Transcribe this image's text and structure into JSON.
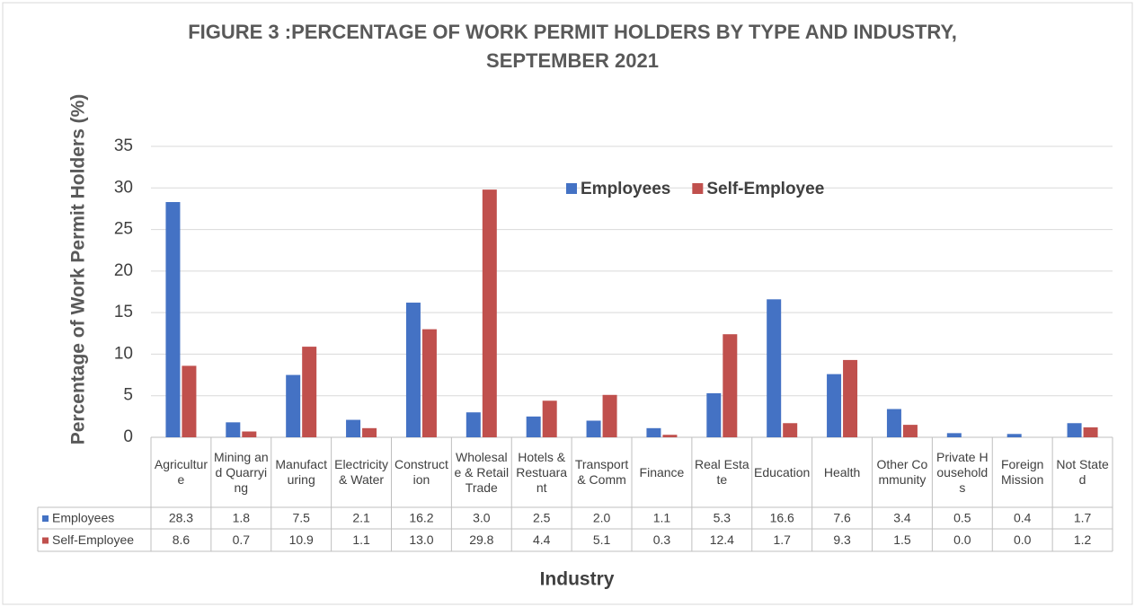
{
  "chart_data": {
    "type": "bar",
    "title": "FIGURE 3 :PERCENTAGE OF WORK PERMIT HOLDERS BY TYPE AND INDUSTRY, SEPTEMBER 2021",
    "y_label": "Percentage of Work Permit Holders (%)",
    "x_label": "Industry",
    "categories": [
      "Agriculture",
      "Mining and Quarrying",
      "Manufacturing",
      "Electricity & Water",
      "Construction",
      "Wholesale & Retail Trade",
      "Hotels & Restuarant",
      "Transport & Comm",
      "Finance",
      "Real Estate",
      "Education",
      "Health",
      "Other Community",
      "Private Households",
      "Foreign Mission",
      "Not Stated"
    ],
    "series": [
      {
        "name": "Employees",
        "color": "#4472c4",
        "values": [
          28.3,
          1.8,
          7.5,
          2.1,
          16.2,
          3.0,
          2.5,
          2.0,
          1.1,
          5.3,
          16.6,
          7.6,
          3.4,
          0.5,
          0.4,
          1.7
        ],
        "value_labels": [
          "28.3",
          "1.8",
          "7.5",
          "2.1",
          "16.2",
          "3.0",
          "2.5",
          "2.0",
          "1.1",
          "5.3",
          "16.6",
          "7.6",
          "3.4",
          "0.5",
          "0.4",
          "1.7"
        ]
      },
      {
        "name": "Self-Employee",
        "color": "#c0504d",
        "values": [
          8.6,
          0.7,
          10.9,
          1.1,
          13.0,
          29.8,
          4.4,
          5.1,
          0.3,
          12.4,
          1.7,
          9.3,
          1.5,
          0.0,
          0.0,
          1.2
        ],
        "value_labels": [
          "8.6",
          "0.7",
          "10.9",
          "1.1",
          "13.0",
          "29.8",
          "4.4",
          "5.1",
          "0.3",
          "12.4",
          "1.7",
          "9.3",
          "1.5",
          "0.0",
          "0.0",
          "1.2"
        ]
      }
    ],
    "ylim": [
      0,
      35
    ],
    "yticks": [
      0,
      5,
      10,
      15,
      20,
      25,
      30,
      35
    ],
    "grid": true,
    "legend": "top"
  }
}
